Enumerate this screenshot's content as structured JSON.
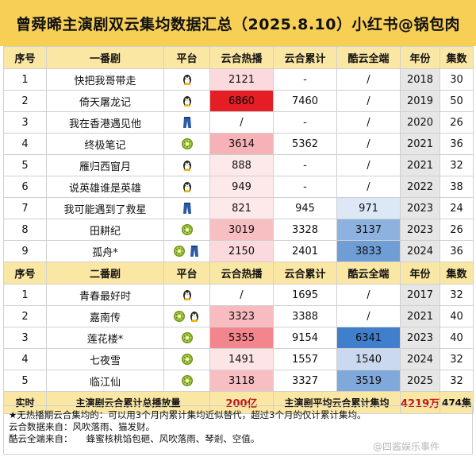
{
  "title": "曾舜晞主演剧双云集均数据汇总（2025.8.10）小红书@锅包肉",
  "section1": {
    "headers": [
      "序号",
      "一番剧",
      "平台",
      "云合热播",
      "云合累计",
      "酷云全端",
      "年份",
      "集数"
    ],
    "rows": [
      {
        "no": "1",
        "name": "快把我哥带走",
        "platforms": [
          "penguin"
        ],
        "hot": "2121",
        "cum": "-",
        "ky": "/",
        "year": "2018",
        "eps": "30",
        "hot_bg": "#fcd9dc",
        "ky_bg": "#ffffff"
      },
      {
        "no": "2",
        "name": "倚天屠龙记",
        "platforms": [
          "penguin"
        ],
        "hot": "6860",
        "cum": "7460",
        "ky": "/",
        "year": "2019",
        "eps": "50",
        "hot_bg": "#e51e25",
        "ky_bg": "#ffffff"
      },
      {
        "no": "3",
        "name": "我在香港遇见他",
        "platforms": [
          "jeans"
        ],
        "hot": "/",
        "cum": "-",
        "ky": "/",
        "year": "2020",
        "eps": "26",
        "hot_bg": "#ffffff",
        "ky_bg": "#ffffff"
      },
      {
        "no": "4",
        "name": "终极笔记",
        "platforms": [
          "kiwi"
        ],
        "hot": "3614",
        "cum": "5362",
        "ky": "/",
        "year": "2021",
        "eps": "36",
        "hot_bg": "#f7b2b7",
        "ky_bg": "#ffffff"
      },
      {
        "no": "5",
        "name": "雁归西窗月",
        "platforms": [
          "penguin"
        ],
        "hot": "888",
        "cum": "-",
        "ky": "/",
        "year": "2021",
        "eps": "32",
        "hot_bg": "#fde8ea",
        "ky_bg": "#ffffff"
      },
      {
        "no": "6",
        "name": "说英雄谁是英雄",
        "platforms": [
          "penguin"
        ],
        "hot": "949",
        "cum": "-",
        "ky": "/",
        "year": "2022",
        "eps": "38",
        "hot_bg": "#fde8ea",
        "ky_bg": "#ffffff"
      },
      {
        "no": "7",
        "name": "我可能遇到了救星",
        "platforms": [
          "jeans"
        ],
        "hot": "821",
        "cum": "945",
        "ky": "971",
        "year": "2023",
        "eps": "24",
        "hot_bg": "#fde8ea",
        "ky_bg": "#dde8f6"
      },
      {
        "no": "8",
        "name": "田耕纪",
        "platforms": [
          "kiwi"
        ],
        "hot": "3019",
        "cum": "3328",
        "ky": "3137",
        "year": "2023",
        "eps": "26",
        "hot_bg": "#f8bfc3",
        "ky_bg": "#8db2df"
      },
      {
        "no": "9",
        "name": "孤舟*",
        "platforms": [
          "kiwi",
          "jeans"
        ],
        "hot": "2150",
        "cum": "2401",
        "ky": "3833",
        "year": "2024",
        "eps": "36",
        "hot_bg": "#fcd9dc",
        "ky_bg": "#6f9ed6"
      }
    ]
  },
  "section2": {
    "headers": [
      "序号",
      "二番剧",
      "平台",
      "云合热播",
      "云合累计",
      "酷云全端",
      "年份",
      "集数"
    ],
    "rows": [
      {
        "no": "1",
        "name": "青春最好时",
        "platforms": [
          "penguin"
        ],
        "hot": "/",
        "cum": "1695",
        "ky": "/",
        "year": "2017",
        "eps": "32",
        "hot_bg": "#ffffff",
        "ky_bg": "#ffffff"
      },
      {
        "no": "2",
        "name": "嘉南传",
        "platforms": [
          "kiwi",
          "penguin"
        ],
        "hot": "3323",
        "cum": "3388",
        "ky": "/",
        "year": "2021",
        "eps": "40",
        "hot_bg": "#f8bbbf",
        "ky_bg": "#ffffff"
      },
      {
        "no": "3",
        "name": "莲花楼*",
        "platforms": [
          "kiwi"
        ],
        "hot": "5355",
        "cum": "9154",
        "ky": "6341",
        "year": "2023",
        "eps": "40",
        "hot_bg": "#f2868c",
        "ky_bg": "#3f7fcc"
      },
      {
        "no": "4",
        "name": "七夜雪",
        "platforms": [
          "kiwi"
        ],
        "hot": "1491",
        "cum": "1557",
        "ky": "1540",
        "year": "2024",
        "eps": "32",
        "hot_bg": "#fde4e6",
        "ky_bg": "#cad9ef"
      },
      {
        "no": "5",
        "name": "临江仙",
        "platforms": [
          "kiwi"
        ],
        "hot": "3118",
        "cum": "3327",
        "ky": "3519",
        "year": "2025",
        "eps": "32",
        "hot_bg": "#f8bfc3",
        "ky_bg": "#7fa8db"
      }
    ]
  },
  "totals": {
    "label": "实时",
    "sum_label": "主演剧云合累计总播放量",
    "sum_value": "200亿",
    "avg_label": "主演剧平均云合累计集均",
    "avg_value": "4219万",
    "eps_total": "474集"
  },
  "notes": [
    "★无热播期云合集均的：可以用3个月内累计集均近似替代，超过3个月的仅计累计集均。",
    "云合数据来自：风吹落雨、猫发财。",
    "酷云全端来自：　　蜂蜜核桃馅包砸、风吹落雨、琴剎、空值。"
  ],
  "watermark": "@四酱娱乐事件",
  "colors": {
    "title_bg": "#f7cf55",
    "header_bg": "#fbe7a4",
    "year_bg": "#e6e6e6",
    "total_red": "#c0161c"
  }
}
